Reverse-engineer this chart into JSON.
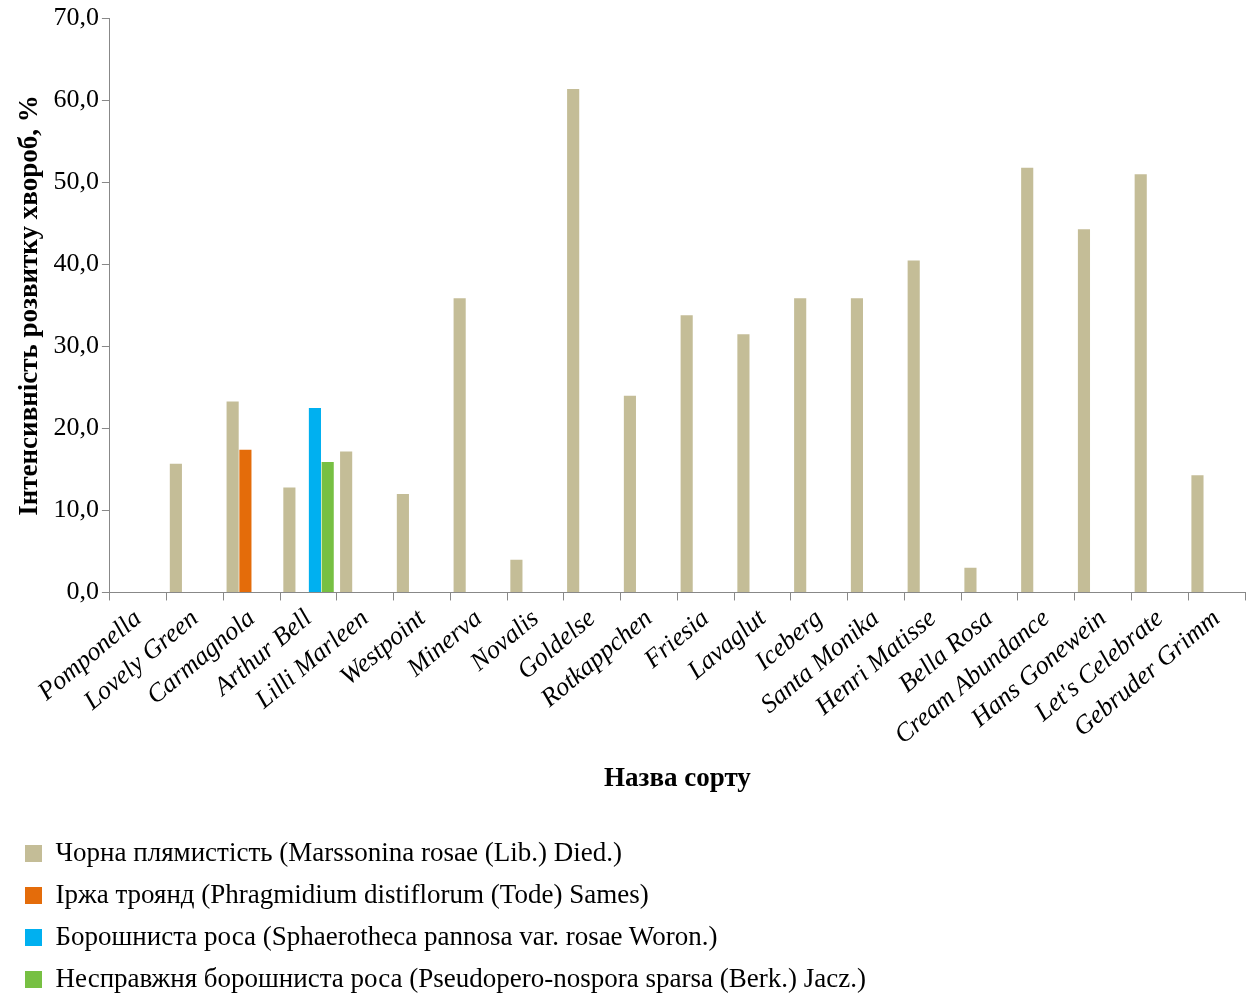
{
  "chart_data": {
    "type": "bar",
    "xlabel": "Назва сорту",
    "ylabel": "Інтенсивність розвитку хвороб, %",
    "categories": [
      "Pomponella",
      "Lovely Green",
      "Carmagnola",
      "Arthur Bell",
      "Lilli Marleen",
      "Westpoint",
      "Minerva",
      "Novalis",
      "Goldelse",
      "Rotkappchen",
      "Friesia",
      "Lavaglut",
      "Iceberg",
      "Santa Monika",
      "Henri Matisse",
      "Bella Rosa",
      "Cream Abundance",
      "Hans Gonewein",
      "Let's Celebrate",
      "Gebruder Grimm"
    ],
    "series": [
      {
        "name": "Чорна плямистість (Marssonina rosae (Lib.) Died.)",
        "color": "#c4bd97",
        "values": [
          null,
          15.7,
          23.3,
          12.8,
          17.2,
          12.0,
          35.9,
          4.0,
          61.4,
          24.0,
          33.8,
          31.5,
          35.9,
          35.9,
          40.5,
          3.0,
          51.8,
          44.3,
          51.0,
          14.3
        ]
      },
      {
        "name": "Іржа троянд (Phragmidium distiflorum (Tode) Sames)",
        "color": "#e46c0a",
        "values": [
          null,
          null,
          17.4,
          null,
          null,
          null,
          null,
          null,
          null,
          null,
          null,
          null,
          null,
          null,
          null,
          null,
          null,
          null,
          null,
          null
        ]
      },
      {
        "name": "Борошниста роса (Sphaerotheca pannosa var. rosae Woron.)",
        "color": "#00b0f0",
        "values": [
          null,
          null,
          null,
          22.5,
          null,
          null,
          null,
          null,
          null,
          null,
          null,
          null,
          null,
          null,
          null,
          null,
          null,
          null,
          null,
          null
        ]
      },
      {
        "name": "Несправжня борошниста роса (Pseudopero-nospora sparsa (Berk.) Jacz.)",
        "color": "#77c043",
        "values": [
          null,
          null,
          null,
          15.9,
          null,
          null,
          null,
          null,
          null,
          null,
          null,
          null,
          null,
          null,
          null,
          null,
          null,
          null,
          null,
          null
        ]
      }
    ],
    "ylim": [
      0,
      70
    ],
    "yticks": [
      {
        "value": 0,
        "label": "0,0"
      },
      {
        "value": 10,
        "label": "10,0"
      },
      {
        "value": 20,
        "label": "20,0"
      },
      {
        "value": 30,
        "label": "30,0"
      },
      {
        "value": 40,
        "label": "40,0"
      },
      {
        "value": 50,
        "label": "50,0"
      },
      {
        "value": 60,
        "label": "60,0"
      },
      {
        "value": 70,
        "label": "70,0"
      }
    ],
    "grid": false,
    "legend": "bottom"
  }
}
